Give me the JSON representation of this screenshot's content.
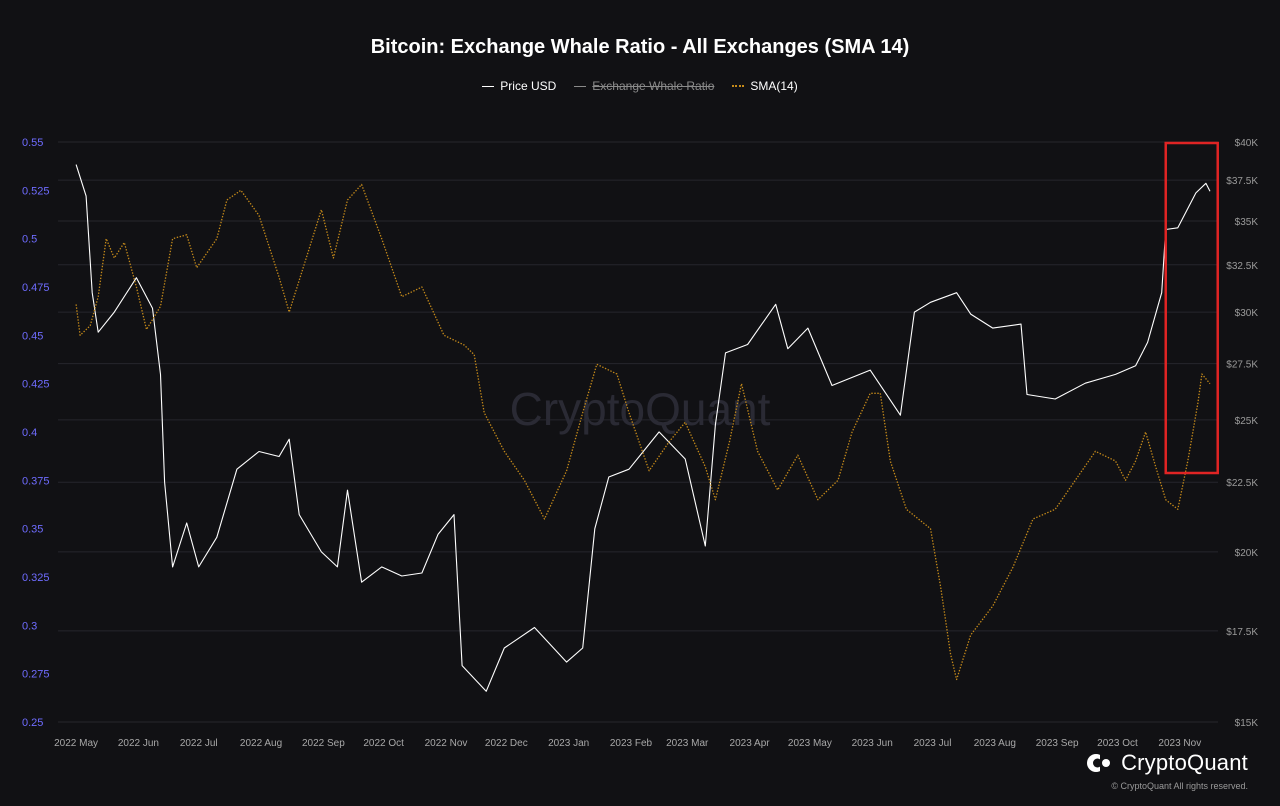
{
  "chart_data": {
    "type": "line",
    "title": "Bitcoin: Exchange Whale Ratio - All Exchanges (SMA 14)",
    "legend_position": "top-center",
    "grid": true,
    "x_labels": [
      "2022 May",
      "2022 Jun",
      "2022 Jul",
      "2022 Aug",
      "2022 Sep",
      "2022 Oct",
      "2022 Nov",
      "2022 Dec",
      "2023 Jan",
      "2023 Feb",
      "2023 Mar",
      "2023 Apr",
      "2023 May",
      "2023 Jun",
      "2023 Jul",
      "2023 Aug",
      "2023 Sep",
      "2023 Oct",
      "2023 Nov"
    ],
    "y_left": {
      "ticks": [
        "0.55",
        "0.525",
        "0.5",
        "0.475",
        "0.45",
        "0.425",
        "0.4",
        "0.375",
        "0.35",
        "0.325",
        "0.3",
        "0.275",
        "0.25"
      ],
      "range": [
        0.25,
        0.55
      ]
    },
    "y_right": {
      "ticks": [
        "$40K",
        "$37.5K",
        "$35K",
        "$32.5K",
        "$30K",
        "$27.5K",
        "$25K",
        "$22.5K",
        "$20K",
        "$17.5K",
        "$15K"
      ],
      "range": [
        15000,
        40000
      ],
      "scale": "log"
    },
    "series": [
      {
        "name": "Price USD",
        "color": "#ffffff",
        "axis": "right",
        "style": "solid",
        "points": [
          [
            "2022-05-01",
            38500
          ],
          [
            "2022-05-06",
            36500
          ],
          [
            "2022-05-09",
            31000
          ],
          [
            "2022-05-12",
            29000
          ],
          [
            "2022-05-20",
            30000
          ],
          [
            "2022-05-31",
            31800
          ],
          [
            "2022-06-08",
            30200
          ],
          [
            "2022-06-12",
            27000
          ],
          [
            "2022-06-14",
            22500
          ],
          [
            "2022-06-18",
            19500
          ],
          [
            "2022-06-25",
            21000
          ],
          [
            "2022-07-01",
            19500
          ],
          [
            "2022-07-10",
            20500
          ],
          [
            "2022-07-20",
            23000
          ],
          [
            "2022-07-31",
            23700
          ],
          [
            "2022-08-10",
            23500
          ],
          [
            "2022-08-15",
            24200
          ],
          [
            "2022-08-20",
            21300
          ],
          [
            "2022-08-31",
            20000
          ],
          [
            "2022-09-08",
            19500
          ],
          [
            "2022-09-13",
            22200
          ],
          [
            "2022-09-20",
            19000
          ],
          [
            "2022-09-30",
            19500
          ],
          [
            "2022-10-10",
            19200
          ],
          [
            "2022-10-20",
            19300
          ],
          [
            "2022-10-28",
            20600
          ],
          [
            "2022-11-05",
            21300
          ],
          [
            "2022-11-09",
            16500
          ],
          [
            "2022-11-21",
            15800
          ],
          [
            "2022-11-30",
            17000
          ],
          [
            "2022-12-15",
            17600
          ],
          [
            "2022-12-31",
            16600
          ],
          [
            "2023-01-08",
            17000
          ],
          [
            "2023-01-14",
            20800
          ],
          [
            "2023-01-21",
            22700
          ],
          [
            "2023-01-31",
            23000
          ],
          [
            "2023-02-15",
            24500
          ],
          [
            "2023-02-28",
            23400
          ],
          [
            "2023-03-10",
            20200
          ],
          [
            "2023-03-15",
            24800
          ],
          [
            "2023-03-20",
            28000
          ],
          [
            "2023-03-31",
            28400
          ],
          [
            "2023-04-14",
            30400
          ],
          [
            "2023-04-20",
            28200
          ],
          [
            "2023-04-30",
            29200
          ],
          [
            "2023-05-12",
            26500
          ],
          [
            "2023-05-31",
            27200
          ],
          [
            "2023-06-15",
            25200
          ],
          [
            "2023-06-22",
            30000
          ],
          [
            "2023-06-30",
            30500
          ],
          [
            "2023-07-13",
            31000
          ],
          [
            "2023-07-20",
            29900
          ],
          [
            "2023-07-31",
            29200
          ],
          [
            "2023-08-14",
            29400
          ],
          [
            "2023-08-17",
            26100
          ],
          [
            "2023-08-31",
            25900
          ],
          [
            "2023-09-15",
            26600
          ],
          [
            "2023-09-30",
            27000
          ],
          [
            "2023-10-10",
            27400
          ],
          [
            "2023-10-16",
            28500
          ],
          [
            "2023-10-23",
            31000
          ],
          [
            "2023-10-25",
            34500
          ],
          [
            "2023-10-31",
            34600
          ],
          [
            "2023-11-09",
            36700
          ],
          [
            "2023-11-14",
            37300
          ],
          [
            "2023-11-16",
            36800
          ]
        ]
      },
      {
        "name": "Exchange Whale Ratio",
        "color": "#8a8a8a",
        "axis": "left",
        "style": "hidden",
        "points": []
      },
      {
        "name": "SMA(14)",
        "color": "#c58a1a",
        "axis": "left",
        "style": "dotted",
        "points": [
          [
            "2022-05-01",
            0.466
          ],
          [
            "2022-05-03",
            0.45
          ],
          [
            "2022-05-08",
            0.455
          ],
          [
            "2022-05-12",
            0.47
          ],
          [
            "2022-05-16",
            0.5
          ],
          [
            "2022-05-20",
            0.49
          ],
          [
            "2022-05-25",
            0.498
          ],
          [
            "2022-05-31",
            0.475
          ],
          [
            "2022-06-05",
            0.453
          ],
          [
            "2022-06-12",
            0.465
          ],
          [
            "2022-06-18",
            0.5
          ],
          [
            "2022-06-25",
            0.502
          ],
          [
            "2022-06-30",
            0.485
          ],
          [
            "2022-07-10",
            0.5
          ],
          [
            "2022-07-15",
            0.52
          ],
          [
            "2022-07-22",
            0.525
          ],
          [
            "2022-07-31",
            0.512
          ],
          [
            "2022-08-10",
            0.48
          ],
          [
            "2022-08-15",
            0.462
          ],
          [
            "2022-08-25",
            0.495
          ],
          [
            "2022-08-31",
            0.515
          ],
          [
            "2022-09-06",
            0.49
          ],
          [
            "2022-09-13",
            0.52
          ],
          [
            "2022-09-20",
            0.528
          ],
          [
            "2022-09-30",
            0.5
          ],
          [
            "2022-10-10",
            0.47
          ],
          [
            "2022-10-20",
            0.475
          ],
          [
            "2022-10-31",
            0.45
          ],
          [
            "2022-11-10",
            0.445
          ],
          [
            "2022-11-15",
            0.44
          ],
          [
            "2022-11-20",
            0.41
          ],
          [
            "2022-11-30",
            0.39
          ],
          [
            "2022-12-10",
            0.375
          ],
          [
            "2022-12-20",
            0.355
          ],
          [
            "2022-12-31",
            0.38
          ],
          [
            "2023-01-08",
            0.41
          ],
          [
            "2023-01-15",
            0.435
          ],
          [
            "2023-01-25",
            0.43
          ],
          [
            "2023-01-31",
            0.41
          ],
          [
            "2023-02-10",
            0.38
          ],
          [
            "2023-02-20",
            0.395
          ],
          [
            "2023-02-28",
            0.405
          ],
          [
            "2023-03-10",
            0.382
          ],
          [
            "2023-03-15",
            0.365
          ],
          [
            "2023-03-22",
            0.395
          ],
          [
            "2023-03-28",
            0.425
          ],
          [
            "2023-04-05",
            0.39
          ],
          [
            "2023-04-15",
            0.37
          ],
          [
            "2023-04-25",
            0.388
          ],
          [
            "2023-05-05",
            0.365
          ],
          [
            "2023-05-15",
            0.375
          ],
          [
            "2023-05-22",
            0.4
          ],
          [
            "2023-05-31",
            0.42
          ],
          [
            "2023-06-05",
            0.42
          ],
          [
            "2023-06-10",
            0.385
          ],
          [
            "2023-06-18",
            0.36
          ],
          [
            "2023-06-30",
            0.35
          ],
          [
            "2023-07-05",
            0.32
          ],
          [
            "2023-07-10",
            0.285
          ],
          [
            "2023-07-13",
            0.272
          ],
          [
            "2023-07-20",
            0.295
          ],
          [
            "2023-07-31",
            0.31
          ],
          [
            "2023-08-10",
            0.33
          ],
          [
            "2023-08-20",
            0.355
          ],
          [
            "2023-08-31",
            0.36
          ],
          [
            "2023-09-10",
            0.375
          ],
          [
            "2023-09-20",
            0.39
          ],
          [
            "2023-09-30",
            0.385
          ],
          [
            "2023-10-05",
            0.375
          ],
          [
            "2023-10-10",
            0.385
          ],
          [
            "2023-10-15",
            0.4
          ],
          [
            "2023-10-20",
            0.382
          ],
          [
            "2023-10-25",
            0.365
          ],
          [
            "2023-10-31",
            0.36
          ],
          [
            "2023-11-05",
            0.385
          ],
          [
            "2023-11-10",
            0.415
          ],
          [
            "2023-11-12",
            0.43
          ],
          [
            "2023-11-16",
            0.425
          ]
        ]
      }
    ],
    "annotation": {
      "type": "highlight-box",
      "color": "#e02424",
      "from": "2023-10-25",
      "to": "2023-11-16"
    }
  },
  "watermark": "CryptoQuant",
  "brand": {
    "name": "CryptoQuant",
    "copyright": "© CryptoQuant All rights reserved."
  }
}
